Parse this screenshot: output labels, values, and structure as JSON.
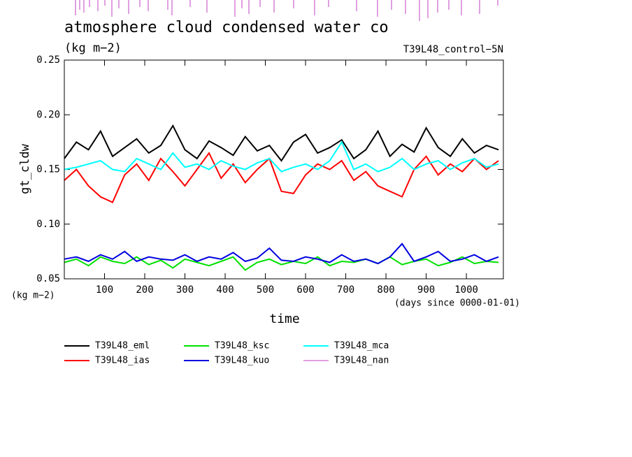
{
  "chart_data": {
    "type": "line",
    "title": "atmosphere cloud condensed water co",
    "subtitle": "(kg m−2)",
    "annotation": "T39L48_control−5N",
    "ylabel": "gt_cldw",
    "yunits": "(kg m−2)",
    "xlabel": "time",
    "xunits": "(days since 0000-01-01)",
    "xlim": [
      0,
      1092
    ],
    "xticks": [
      100,
      200,
      300,
      400,
      500,
      600,
      700,
      800,
      900,
      1000
    ],
    "ylim": [
      0.05,
      0.25
    ],
    "yticks": [
      0.05,
      {
        "value": 0.1,
        "label": "0.10"
      },
      0.15,
      {
        "value": 0.2,
        "label": "0.20"
      },
      0.25
    ],
    "x": [
      0,
      30,
      60,
      90,
      120,
      150,
      180,
      210,
      240,
      270,
      300,
      330,
      360,
      390,
      420,
      450,
      480,
      510,
      540,
      570,
      600,
      630,
      660,
      690,
      720,
      750,
      780,
      810,
      840,
      870,
      900,
      930,
      960,
      990,
      1020,
      1050,
      1080
    ],
    "series": [
      {
        "name": "T39L48_eml",
        "color": "#000000",
        "values": [
          0.16,
          0.175,
          0.168,
          0.185,
          0.162,
          0.17,
          0.178,
          0.165,
          0.172,
          0.19,
          0.168,
          0.16,
          0.176,
          0.17,
          0.163,
          0.18,
          0.167,
          0.172,
          0.158,
          0.175,
          0.182,
          0.165,
          0.17,
          0.177,
          0.16,
          0.168,
          0.185,
          0.162,
          0.173,
          0.166,
          0.188,
          0.17,
          0.162,
          0.178,
          0.165,
          0.172,
          0.168
        ]
      },
      {
        "name": "T39L48_ias",
        "color": "#ff0000",
        "values": [
          0.14,
          0.15,
          0.135,
          0.125,
          0.12,
          0.145,
          0.155,
          0.14,
          0.16,
          0.148,
          0.135,
          0.15,
          0.165,
          0.142,
          0.155,
          0.138,
          0.15,
          0.16,
          0.13,
          0.128,
          0.145,
          0.155,
          0.15,
          0.158,
          0.14,
          0.148,
          0.135,
          0.13,
          0.125,
          0.15,
          0.162,
          0.145,
          0.155,
          0.148,
          0.16,
          0.15,
          0.158
        ]
      },
      {
        "name": "T39L48_ksc",
        "color": "#00e000",
        "values": [
          0.065,
          0.068,
          0.062,
          0.07,
          0.066,
          0.064,
          0.07,
          0.063,
          0.067,
          0.06,
          0.068,
          0.065,
          0.062,
          0.066,
          0.07,
          0.058,
          0.065,
          0.068,
          0.063,
          0.066,
          0.064,
          0.07,
          0.062,
          0.066,
          0.065,
          0.068,
          0.064,
          0.07,
          0.063,
          0.066,
          0.068,
          0.062,
          0.065,
          0.07,
          0.064,
          0.066,
          0.065
        ]
      },
      {
        "name": "T39L48_kuo",
        "color": "#0000e0",
        "values": [
          0.068,
          0.07,
          0.066,
          0.072,
          0.068,
          0.075,
          0.066,
          0.07,
          0.068,
          0.067,
          0.072,
          0.066,
          0.07,
          0.068,
          0.074,
          0.066,
          0.069,
          0.078,
          0.067,
          0.066,
          0.07,
          0.068,
          0.065,
          0.072,
          0.066,
          0.068,
          0.064,
          0.07,
          0.082,
          0.066,
          0.07,
          0.075,
          0.066,
          0.068,
          0.072,
          0.066,
          0.07
        ]
      },
      {
        "name": "T39L48_mca",
        "color": "#00ffff",
        "values": [
          0.15,
          0.152,
          0.155,
          0.158,
          0.15,
          0.148,
          0.16,
          0.155,
          0.15,
          0.165,
          0.152,
          0.155,
          0.15,
          0.158,
          0.153,
          0.15,
          0.156,
          0.16,
          0.148,
          0.152,
          0.155,
          0.15,
          0.158,
          0.175,
          0.15,
          0.155,
          0.148,
          0.152,
          0.16,
          0.15,
          0.155,
          0.158,
          0.15,
          0.156,
          0.16,
          0.152,
          0.155
        ]
      },
      {
        "name": "T39L48_nan",
        "color": "#e0a0e0",
        "values": [
          null,
          null,
          null,
          null,
          null,
          null,
          null,
          null,
          null,
          null,
          null,
          null,
          null,
          null,
          null,
          null,
          null,
          null,
          null,
          null,
          null,
          null,
          null,
          null,
          null,
          null,
          null,
          null,
          null,
          null,
          null,
          null,
          null,
          null,
          null,
          null,
          null
        ]
      }
    ]
  }
}
